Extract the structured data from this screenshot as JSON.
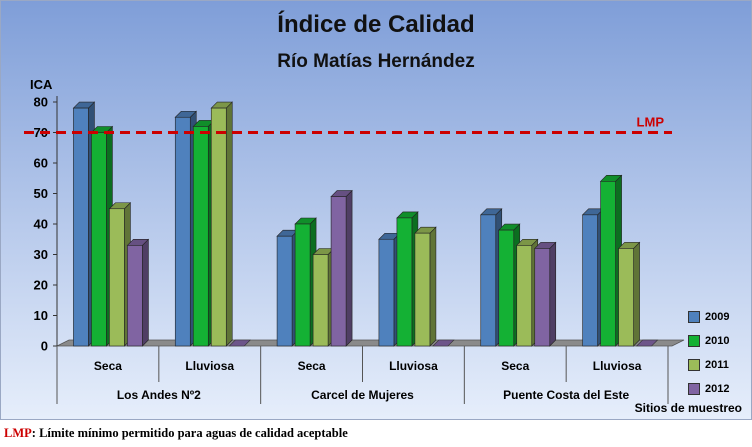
{
  "chart_data": {
    "type": "bar",
    "title": "Índice de Calidad",
    "subtitle": "Río Matías Hernández",
    "ylabel": "ICA",
    "xlabel": "Sitios de muestreo",
    "ylim": [
      0,
      80
    ],
    "yticks": [
      0,
      10,
      20,
      30,
      40,
      50,
      60,
      70,
      80
    ],
    "groups": [
      {
        "site": "Los Andes Nº2",
        "categories": [
          "Seca",
          "Lluviosa"
        ]
      },
      {
        "site": "Carcel de Mujeres",
        "categories": [
          "Seca",
          "Lluviosa"
        ]
      },
      {
        "site": "Puente Costa del Este",
        "categories": [
          "Seca",
          "Lluviosa"
        ]
      }
    ],
    "categories": [
      "Seca",
      "Lluviosa",
      "Seca",
      "Lluviosa",
      "Seca",
      "Lluviosa"
    ],
    "series": [
      {
        "name": "2009",
        "color": "#4f81bd",
        "values": [
          78,
          75,
          36,
          35,
          43,
          43
        ]
      },
      {
        "name": "2010",
        "color": "#14b134",
        "values": [
          70,
          72,
          40,
          42,
          38,
          54
        ]
      },
      {
        "name": "2011",
        "color": "#9bbb59",
        "values": [
          45,
          78,
          30,
          37,
          33,
          32
        ]
      },
      {
        "name": "2012",
        "color": "#8064a2",
        "values": [
          33,
          0,
          49,
          0,
          32,
          0
        ]
      }
    ],
    "reference_line": {
      "label": "LMP",
      "value": 70,
      "color": "#cc0000",
      "style": "dashed"
    },
    "legend_position": "bottom-right",
    "grid": false
  },
  "footnote": {
    "key": "LMP",
    "text": ": Límite mínimo permitido para  aguas de calidad aceptable"
  }
}
